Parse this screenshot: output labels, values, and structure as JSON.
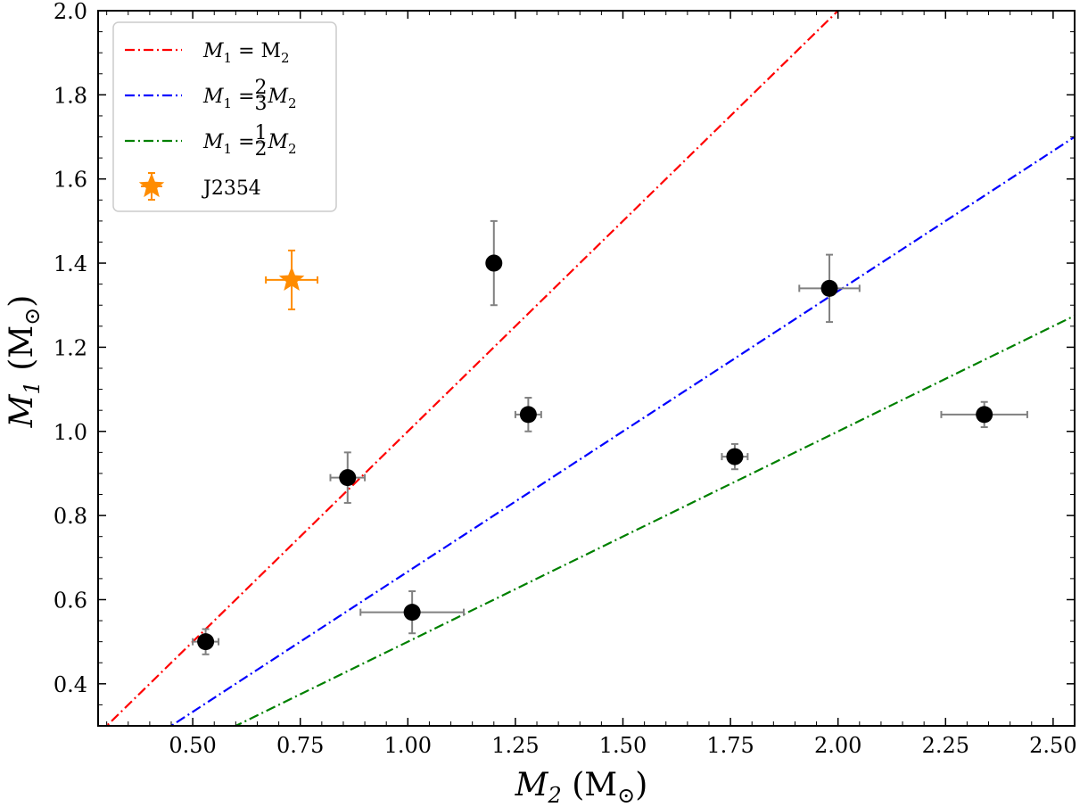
{
  "chart_data": {
    "type": "scatter",
    "xlabel": "M2 (M⊙)",
    "ylabel": "M1 (M⊙)",
    "xlim": [
      0.28,
      2.55
    ],
    "ylim": [
      0.3,
      2.0
    ],
    "xticks": [
      0.5,
      0.75,
      1.0,
      1.25,
      1.5,
      1.75,
      2.0,
      2.25,
      2.5
    ],
    "xtick_labels": [
      "0.50",
      "0.75",
      "1.00",
      "1.25",
      "1.50",
      "1.75",
      "2.00",
      "2.25",
      "2.50"
    ],
    "yticks": [
      0.4,
      0.6,
      0.8,
      1.0,
      1.2,
      1.4,
      1.6,
      1.8,
      2.0
    ],
    "ytick_labels": [
      "0.4",
      "0.6",
      "0.8",
      "1.0",
      "1.2",
      "1.4",
      "1.6",
      "1.8",
      "2.0"
    ],
    "lines": [
      {
        "name": "M1 = M2",
        "label_parts": [
          "M",
          "1",
          " = M",
          "2"
        ],
        "slope": 1.0,
        "color": "#ff0000"
      },
      {
        "name": "M1 = 2/3 M2",
        "label_parts": [
          "M",
          "1",
          " = ",
          "2",
          "3",
          "M",
          "2"
        ],
        "slope": 0.6667,
        "color": "#0000ff"
      },
      {
        "name": "M1 = 1/2 M2",
        "label_parts": [
          "M",
          "1",
          " = ",
          "1",
          "2",
          "M",
          "2"
        ],
        "slope": 0.5,
        "color": "#008000"
      }
    ],
    "points": [
      {
        "x": 0.53,
        "y": 0.5,
        "xerr": 0.03,
        "yerr": 0.03
      },
      {
        "x": 0.86,
        "y": 0.89,
        "xerr": 0.04,
        "yerr": 0.06
      },
      {
        "x": 1.01,
        "y": 0.57,
        "xerr": 0.12,
        "yerr": 0.05
      },
      {
        "x": 1.2,
        "y": 1.4,
        "xerr": 0.01,
        "yerr": 0.1
      },
      {
        "x": 1.28,
        "y": 1.04,
        "xerr": 0.03,
        "yerr": 0.04
      },
      {
        "x": 1.76,
        "y": 0.94,
        "xerr": 0.03,
        "yerr": 0.03
      },
      {
        "x": 1.98,
        "y": 1.34,
        "xerr": 0.07,
        "yerr": 0.08
      },
      {
        "x": 2.34,
        "y": 1.04,
        "xerr": 0.1,
        "yerr": 0.03
      }
    ],
    "highlight": {
      "name": "J2354",
      "x": 0.73,
      "y": 1.36,
      "xerr": 0.06,
      "yerr": 0.07,
      "color": "#ff8c00"
    },
    "legend_position": "top-left"
  },
  "colors": {
    "point": "#000000",
    "errorbar": "#808080",
    "frame": "#000000"
  }
}
